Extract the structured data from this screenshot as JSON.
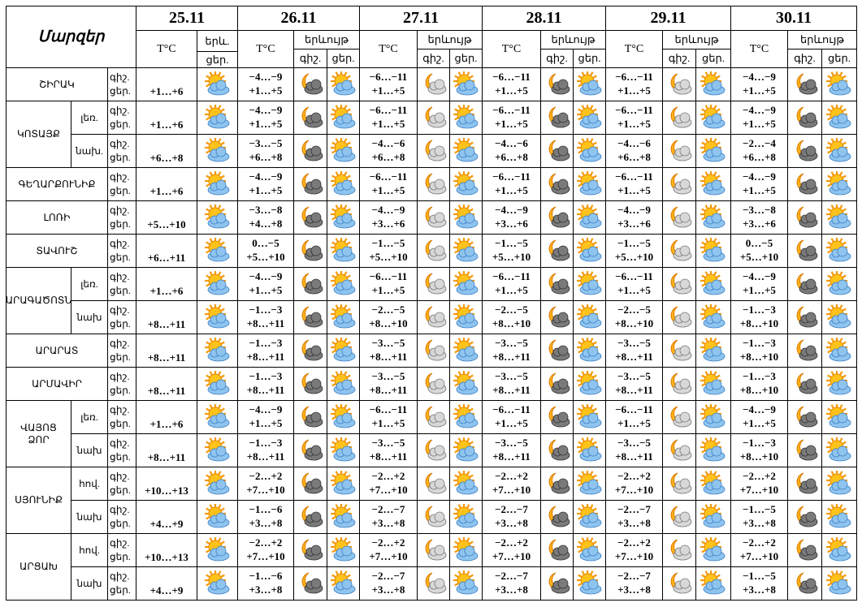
{
  "table": {
    "header": {
      "title": "Մարզեր",
      "dates": [
        "25.11",
        "26.11",
        "27.11",
        "28.11",
        "29.11",
        "30.11"
      ],
      "temp": "T°C",
      "phen_short": "երև.",
      "phen": "երևույթ",
      "night": "գիշ.",
      "day": "ցեր."
    },
    "regions": [
      {
        "name": "ՇԻՐԱԿ",
        "rows": [
          {
            "first": "+1…+6",
            "forecast": [
              [
                "−4…−9",
                "+1…+5"
              ],
              [
                "−6…−11",
                "+1…+5"
              ],
              [
                "−6…−11",
                "+1…+5"
              ],
              [
                "−6…−11",
                "+1…+5"
              ],
              [
                "−4…−9",
                "+1…+5"
              ]
            ]
          }
        ]
      },
      {
        "name": "ԿՈՏԱՅՔ",
        "rows": [
          {
            "sub": "լեռ.",
            "first": "+1…+6",
            "forecast": [
              [
                "−4…−9",
                "+1…+5"
              ],
              [
                "−6…−11",
                "+1…+5"
              ],
              [
                "−6…−11",
                "+1…+5"
              ],
              [
                "−6…−11",
                "+1…+5"
              ],
              [
                "−4…−9",
                "+1…+5"
              ]
            ]
          },
          {
            "sub": "նախ.",
            "first": "+6…+8",
            "forecast": [
              [
                "−3…−5",
                "+6…+8"
              ],
              [
                "−4…−6",
                "+6…+8"
              ],
              [
                "−4…−6",
                "+6…+8"
              ],
              [
                "−4…−6",
                "+6…+8"
              ],
              [
                "−2…−4",
                "+6…+8"
              ]
            ]
          }
        ]
      },
      {
        "name": "ԳԵՂԱՐՔՈՒՆԻՔ",
        "rows": [
          {
            "first": "+1…+6",
            "forecast": [
              [
                "−4…−9",
                "+1…+5"
              ],
              [
                "−6…−11",
                "+1…+5"
              ],
              [
                "−6…−11",
                "+1…+5"
              ],
              [
                "−6…−11",
                "+1…+5"
              ],
              [
                "−4…−9",
                "+1…+5"
              ]
            ]
          }
        ]
      },
      {
        "name": "ԼՈՌԻ",
        "rows": [
          {
            "first": "+5…+10",
            "forecast": [
              [
                "−3…−8",
                "+4…+8"
              ],
              [
                "−4…−9",
                "+3…+6"
              ],
              [
                "−4…−9",
                "+3…+6"
              ],
              [
                "−4…−9",
                "+3…+6"
              ],
              [
                "−3…−8",
                "+3…+6"
              ]
            ]
          }
        ]
      },
      {
        "name": "ՏԱՎՈՒՇ",
        "rows": [
          {
            "first": "+6…+11",
            "forecast": [
              [
                "0…−5",
                "+5…+10"
              ],
              [
                "−1…−5",
                "+5…+10"
              ],
              [
                "−1…−5",
                "+5…+10"
              ],
              [
                "−1…−5",
                "+5…+10"
              ],
              [
                "0…−5",
                "+5…+10"
              ]
            ]
          }
        ]
      },
      {
        "name": "ԱՐԱԳԱԾՈՏՆ",
        "rows": [
          {
            "sub": "լեռ.",
            "first": "+1…+6",
            "forecast": [
              [
                "−4…−9",
                "+1…+5"
              ],
              [
                "−6…−11",
                "+1…+5"
              ],
              [
                "−6…−11",
                "+1…+5"
              ],
              [
                "−6…−11",
                "+1…+5"
              ],
              [
                "−4…−9",
                "+1…+5"
              ]
            ]
          },
          {
            "sub": "նախ",
            "first": "+8…+11",
            "forecast": [
              [
                "−1…−3",
                "+8…+11"
              ],
              [
                "−2…−5",
                "+8…+10"
              ],
              [
                "−2…−5",
                "+8…+10"
              ],
              [
                "−2…−5",
                "+8…+10"
              ],
              [
                "−1…−3",
                "+8…+10"
              ]
            ]
          }
        ]
      },
      {
        "name": "ԱՐԱՐԱՏ",
        "rows": [
          {
            "first": "+8…+11",
            "forecast": [
              [
                "−1…−3",
                "+8…+11"
              ],
              [
                "−3…−5",
                "+8…+11"
              ],
              [
                "−3…−5",
                "+8…+11"
              ],
              [
                "−3…−5",
                "+8…+11"
              ],
              [
                "−1…−3",
                "+8…+10"
              ]
            ]
          }
        ]
      },
      {
        "name": "ԱՐՄԱՎԻՐ",
        "rows": [
          {
            "first": "+8…+11",
            "forecast": [
              [
                "−1…−3",
                "+8…+11"
              ],
              [
                "−3…−5",
                "+8…+11"
              ],
              [
                "−3…−5",
                "+8…+11"
              ],
              [
                "−3…−5",
                "+8…+11"
              ],
              [
                "−1…−3",
                "+8…+10"
              ]
            ]
          }
        ]
      },
      {
        "name": "ՎԱՅՈՑ ՁՈՐ",
        "rows": [
          {
            "sub": "լեռ.",
            "first": "+1…+6",
            "forecast": [
              [
                "−4…−9",
                "+1…+5"
              ],
              [
                "−6…−11",
                "+1…+5"
              ],
              [
                "−6…−11",
                "+1…+5"
              ],
              [
                "−6…−11",
                "+1…+5"
              ],
              [
                "−4…−9",
                "+1…+5"
              ]
            ]
          },
          {
            "sub": "նախ",
            "first": "+8…+11",
            "forecast": [
              [
                "−1…−3",
                "+8…+11"
              ],
              [
                "−3…−5",
                "+8…+11"
              ],
              [
                "−3…−5",
                "+8…+11"
              ],
              [
                "−3…−5",
                "+8…+11"
              ],
              [
                "−1…−3",
                "+8…+10"
              ]
            ]
          }
        ]
      },
      {
        "name": "ՍՅՈՒՆԻՔ",
        "rows": [
          {
            "sub": "հով.",
            "first": "+10…+13",
            "forecast": [
              [
                "−2…+2",
                "+7…+10"
              ],
              [
                "−2…+2",
                "+7…+10"
              ],
              [
                "−2…+2",
                "+7…+10"
              ],
              [
                "−2…+2",
                "+7…+10"
              ],
              [
                "−2…+2",
                "+7…+10"
              ]
            ]
          },
          {
            "sub": "նախ",
            "first": "+4…+9",
            "forecast": [
              [
                "−1…−6",
                "+3…+8"
              ],
              [
                "−2…−7",
                "+3…+8"
              ],
              [
                "−2…−7",
                "+3…+8"
              ],
              [
                "−2…−7",
                "+3…+8"
              ],
              [
                "−1…−5",
                "+3…+8"
              ]
            ]
          }
        ]
      },
      {
        "name": "ԱՐՑԱԽ",
        "rows": [
          {
            "sub": "հով.",
            "first": "+10…+13",
            "forecast": [
              [
                "−2…+2",
                "+7…+10"
              ],
              [
                "−2…+2",
                "+7…+10"
              ],
              [
                "−2…+2",
                "+7…+10"
              ],
              [
                "−2…+2",
                "+7…+10"
              ],
              [
                "−2…+2",
                "+7…+10"
              ]
            ]
          },
          {
            "sub": "նախ",
            "first": "+4…+9",
            "forecast": [
              [
                "−1…−6",
                "+3…+8"
              ],
              [
                "−2…−7",
                "+3…+8"
              ],
              [
                "−2…−7",
                "+3…+8"
              ],
              [
                "−2…−7",
                "+3…+8"
              ],
              [
                "−1…−5",
                "+3…+8"
              ]
            ]
          }
        ]
      }
    ]
  }
}
